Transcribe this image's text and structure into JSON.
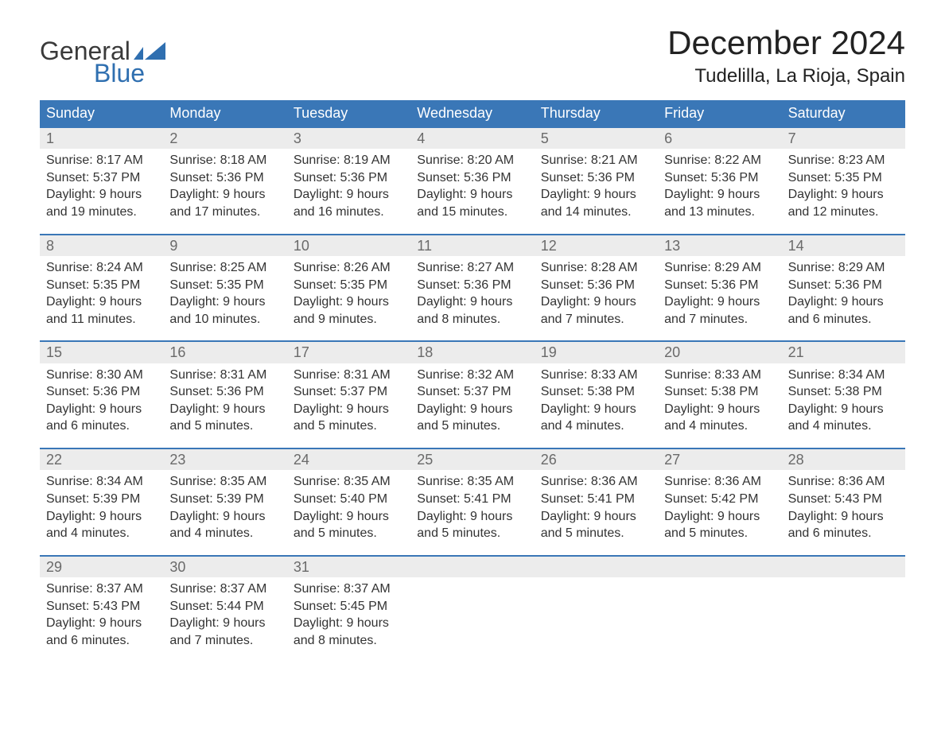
{
  "logo": {
    "text1": "General",
    "text2": "Blue",
    "flag_color": "#2f6fb0",
    "text1_color": "#3a3a3a"
  },
  "header": {
    "title": "December 2024",
    "subtitle": "Tudelilla, La Rioja, Spain"
  },
  "style": {
    "header_bg": "#3a77b7",
    "header_text": "#ffffff",
    "daynum_bg": "#ececec",
    "daynum_color": "#6a6a6a",
    "body_text": "#333333",
    "week_border": "#3a77b7",
    "title_fontsize": 42,
    "subtitle_fontsize": 24,
    "dow_fontsize": 18,
    "daynum_fontsize": 18,
    "body_fontsize": 16
  },
  "days_of_week": [
    "Sunday",
    "Monday",
    "Tuesday",
    "Wednesday",
    "Thursday",
    "Friday",
    "Saturday"
  ],
  "weeks": [
    [
      {
        "n": "1",
        "sunrise": "Sunrise: 8:17 AM",
        "sunset": "Sunset: 5:37 PM",
        "d1": "Daylight: 9 hours",
        "d2": "and 19 minutes."
      },
      {
        "n": "2",
        "sunrise": "Sunrise: 8:18 AM",
        "sunset": "Sunset: 5:36 PM",
        "d1": "Daylight: 9 hours",
        "d2": "and 17 minutes."
      },
      {
        "n": "3",
        "sunrise": "Sunrise: 8:19 AM",
        "sunset": "Sunset: 5:36 PM",
        "d1": "Daylight: 9 hours",
        "d2": "and 16 minutes."
      },
      {
        "n": "4",
        "sunrise": "Sunrise: 8:20 AM",
        "sunset": "Sunset: 5:36 PM",
        "d1": "Daylight: 9 hours",
        "d2": "and 15 minutes."
      },
      {
        "n": "5",
        "sunrise": "Sunrise: 8:21 AM",
        "sunset": "Sunset: 5:36 PM",
        "d1": "Daylight: 9 hours",
        "d2": "and 14 minutes."
      },
      {
        "n": "6",
        "sunrise": "Sunrise: 8:22 AM",
        "sunset": "Sunset: 5:36 PM",
        "d1": "Daylight: 9 hours",
        "d2": "and 13 minutes."
      },
      {
        "n": "7",
        "sunrise": "Sunrise: 8:23 AM",
        "sunset": "Sunset: 5:35 PM",
        "d1": "Daylight: 9 hours",
        "d2": "and 12 minutes."
      }
    ],
    [
      {
        "n": "8",
        "sunrise": "Sunrise: 8:24 AM",
        "sunset": "Sunset: 5:35 PM",
        "d1": "Daylight: 9 hours",
        "d2": "and 11 minutes."
      },
      {
        "n": "9",
        "sunrise": "Sunrise: 8:25 AM",
        "sunset": "Sunset: 5:35 PM",
        "d1": "Daylight: 9 hours",
        "d2": "and 10 minutes."
      },
      {
        "n": "10",
        "sunrise": "Sunrise: 8:26 AM",
        "sunset": "Sunset: 5:35 PM",
        "d1": "Daylight: 9 hours",
        "d2": "and 9 minutes."
      },
      {
        "n": "11",
        "sunrise": "Sunrise: 8:27 AM",
        "sunset": "Sunset: 5:36 PM",
        "d1": "Daylight: 9 hours",
        "d2": "and 8 minutes."
      },
      {
        "n": "12",
        "sunrise": "Sunrise: 8:28 AM",
        "sunset": "Sunset: 5:36 PM",
        "d1": "Daylight: 9 hours",
        "d2": "and 7 minutes."
      },
      {
        "n": "13",
        "sunrise": "Sunrise: 8:29 AM",
        "sunset": "Sunset: 5:36 PM",
        "d1": "Daylight: 9 hours",
        "d2": "and 7 minutes."
      },
      {
        "n": "14",
        "sunrise": "Sunrise: 8:29 AM",
        "sunset": "Sunset: 5:36 PM",
        "d1": "Daylight: 9 hours",
        "d2": "and 6 minutes."
      }
    ],
    [
      {
        "n": "15",
        "sunrise": "Sunrise: 8:30 AM",
        "sunset": "Sunset: 5:36 PM",
        "d1": "Daylight: 9 hours",
        "d2": "and 6 minutes."
      },
      {
        "n": "16",
        "sunrise": "Sunrise: 8:31 AM",
        "sunset": "Sunset: 5:36 PM",
        "d1": "Daylight: 9 hours",
        "d2": "and 5 minutes."
      },
      {
        "n": "17",
        "sunrise": "Sunrise: 8:31 AM",
        "sunset": "Sunset: 5:37 PM",
        "d1": "Daylight: 9 hours",
        "d2": "and 5 minutes."
      },
      {
        "n": "18",
        "sunrise": "Sunrise: 8:32 AM",
        "sunset": "Sunset: 5:37 PM",
        "d1": "Daylight: 9 hours",
        "d2": "and 5 minutes."
      },
      {
        "n": "19",
        "sunrise": "Sunrise: 8:33 AM",
        "sunset": "Sunset: 5:38 PM",
        "d1": "Daylight: 9 hours",
        "d2": "and 4 minutes."
      },
      {
        "n": "20",
        "sunrise": "Sunrise: 8:33 AM",
        "sunset": "Sunset: 5:38 PM",
        "d1": "Daylight: 9 hours",
        "d2": "and 4 minutes."
      },
      {
        "n": "21",
        "sunrise": "Sunrise: 8:34 AM",
        "sunset": "Sunset: 5:38 PM",
        "d1": "Daylight: 9 hours",
        "d2": "and 4 minutes."
      }
    ],
    [
      {
        "n": "22",
        "sunrise": "Sunrise: 8:34 AM",
        "sunset": "Sunset: 5:39 PM",
        "d1": "Daylight: 9 hours",
        "d2": "and 4 minutes."
      },
      {
        "n": "23",
        "sunrise": "Sunrise: 8:35 AM",
        "sunset": "Sunset: 5:39 PM",
        "d1": "Daylight: 9 hours",
        "d2": "and 4 minutes."
      },
      {
        "n": "24",
        "sunrise": "Sunrise: 8:35 AM",
        "sunset": "Sunset: 5:40 PM",
        "d1": "Daylight: 9 hours",
        "d2": "and 5 minutes."
      },
      {
        "n": "25",
        "sunrise": "Sunrise: 8:35 AM",
        "sunset": "Sunset: 5:41 PM",
        "d1": "Daylight: 9 hours",
        "d2": "and 5 minutes."
      },
      {
        "n": "26",
        "sunrise": "Sunrise: 8:36 AM",
        "sunset": "Sunset: 5:41 PM",
        "d1": "Daylight: 9 hours",
        "d2": "and 5 minutes."
      },
      {
        "n": "27",
        "sunrise": "Sunrise: 8:36 AM",
        "sunset": "Sunset: 5:42 PM",
        "d1": "Daylight: 9 hours",
        "d2": "and 5 minutes."
      },
      {
        "n": "28",
        "sunrise": "Sunrise: 8:36 AM",
        "sunset": "Sunset: 5:43 PM",
        "d1": "Daylight: 9 hours",
        "d2": "and 6 minutes."
      }
    ],
    [
      {
        "n": "29",
        "sunrise": "Sunrise: 8:37 AM",
        "sunset": "Sunset: 5:43 PM",
        "d1": "Daylight: 9 hours",
        "d2": "and 6 minutes."
      },
      {
        "n": "30",
        "sunrise": "Sunrise: 8:37 AM",
        "sunset": "Sunset: 5:44 PM",
        "d1": "Daylight: 9 hours",
        "d2": "and 7 minutes."
      },
      {
        "n": "31",
        "sunrise": "Sunrise: 8:37 AM",
        "sunset": "Sunset: 5:45 PM",
        "d1": "Daylight: 9 hours",
        "d2": "and 8 minutes."
      },
      {
        "n": "",
        "blank": true
      },
      {
        "n": "",
        "blank": true
      },
      {
        "n": "",
        "blank": true
      },
      {
        "n": "",
        "blank": true
      }
    ]
  ]
}
